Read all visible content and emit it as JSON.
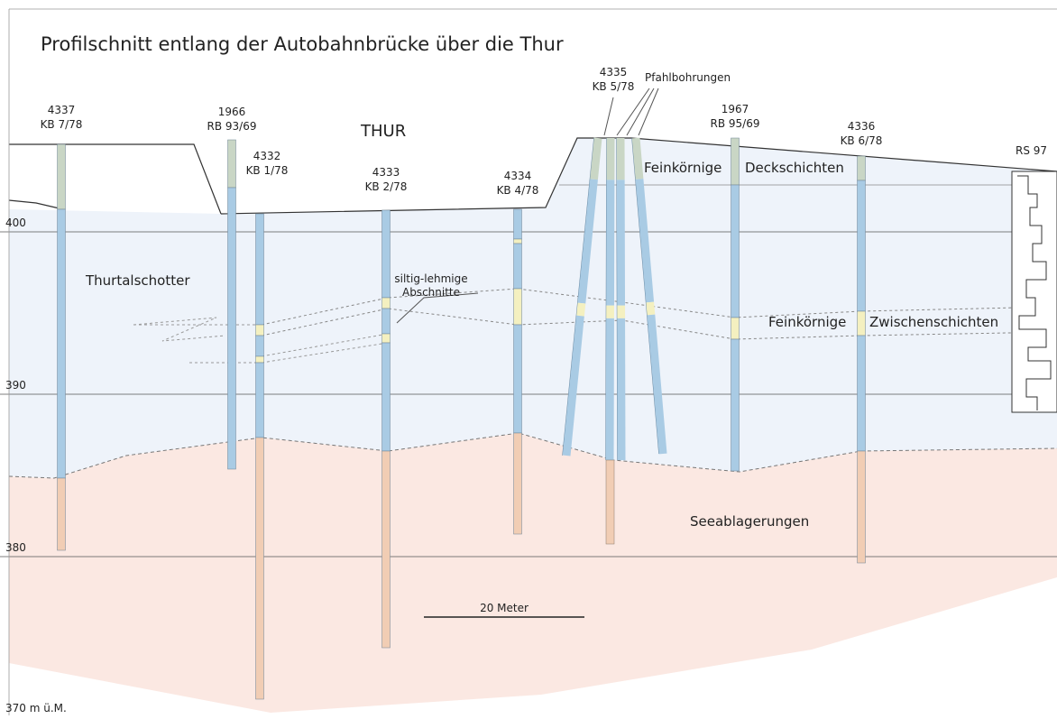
{
  "header": {
    "title": "Profilschnitt entlang der Autobahnbrücke über die Thur"
  },
  "elevations": [
    "400",
    "390",
    "380",
    "370 m ü.M."
  ],
  "boreholes": [
    {
      "id": "4337",
      "code": "KB 7/78"
    },
    {
      "id": "1966",
      "code": "RB 93/69"
    },
    {
      "id": "4332",
      "code": "KB 1/78"
    },
    {
      "id": "4333",
      "code": "KB 2/78"
    },
    {
      "id": "4334",
      "code": "KB 4/78"
    },
    {
      "id": "4335",
      "code": "KB 5/78",
      "note": "Pfahlbohrungen"
    },
    {
      "id": "1967",
      "code": "RB 95/69"
    },
    {
      "id": "4336",
      "code": "KB 6/78"
    }
  ],
  "log": "RS 97",
  "labels": {
    "river": "THUR",
    "gravel": "Thurtalschotter",
    "silt_1": "siltig-lehmige",
    "silt_2": "Abschnitte",
    "top_1": "Feinkörnige",
    "top_2": "Deckschichten",
    "mid_1": "Feinkörnige",
    "mid_2": "Zwischenschichten",
    "lake": "Seeablagerungen"
  },
  "scale": "20 Meter"
}
